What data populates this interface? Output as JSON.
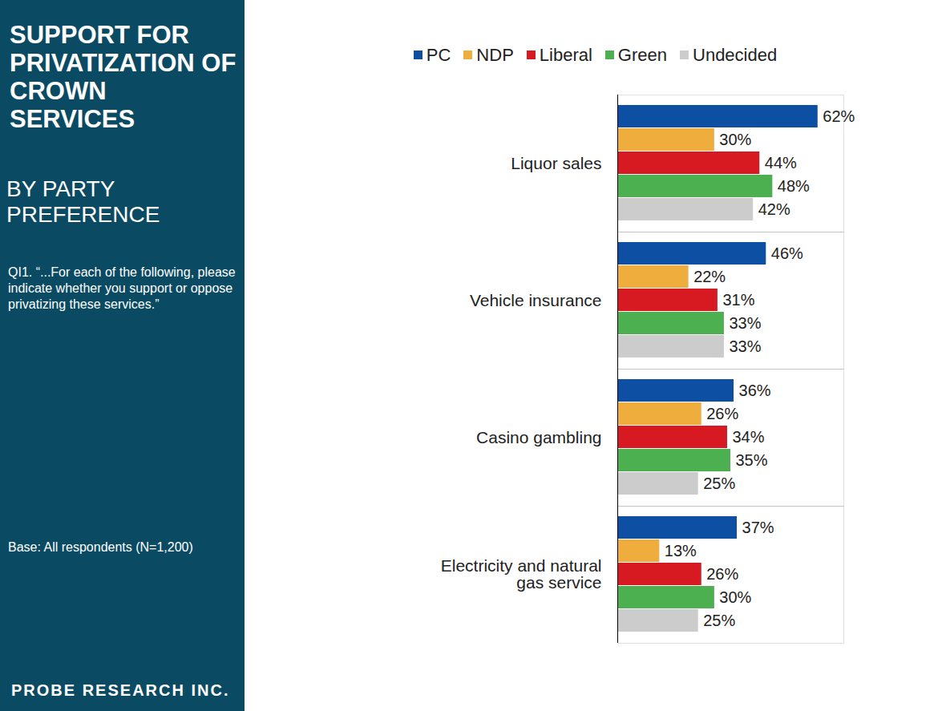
{
  "chart_data": {
    "type": "bar",
    "orientation": "horizontal",
    "title": "SUPPORT FOR PRIVATIZATION OF CROWN SERVICES",
    "subtitle": "BY PARTY PREFERENCE",
    "annotations": [
      "QI1. “...For each of the following, please indicate whether you support or oppose privatizing these services.”",
      "Base: All respondents (N=1,200)",
      "PROBE RESEARCH INC."
    ],
    "categories": [
      "Liquor sales",
      "Vehicle insurance",
      "Casino gambling",
      "Electricity and natural gas service"
    ],
    "series": [
      {
        "name": "PC",
        "color": "#0d4fa3",
        "values": [
          62,
          46,
          36,
          37
        ],
        "value_labels": [
          "62%",
          "46%",
          "36%",
          "37%"
        ]
      },
      {
        "name": "NDP",
        "color": "#eead3d",
        "values": [
          30,
          22,
          26,
          13
        ],
        "value_labels": [
          "30%",
          "22%",
          "26%",
          "13%"
        ]
      },
      {
        "name": "Liberal",
        "color": "#d71a21",
        "values": [
          44,
          31,
          34,
          26
        ],
        "value_labels": [
          "44%",
          "31%",
          "34%",
          "26%"
        ]
      },
      {
        "name": "Green",
        "color": "#4caf50",
        "values": [
          48,
          33,
          35,
          30
        ],
        "value_labels": [
          "48%",
          "33%",
          "35%",
          "30%"
        ]
      },
      {
        "name": "Undecided",
        "color": "#cccccc",
        "values": [
          42,
          33,
          25,
          25
        ],
        "value_labels": [
          "42%",
          "33%",
          "25%",
          "25%"
        ]
      }
    ],
    "xlim": [
      0,
      70
    ],
    "xticks": [],
    "data_labels": true,
    "tick_labels": "y",
    "legend": "top"
  }
}
